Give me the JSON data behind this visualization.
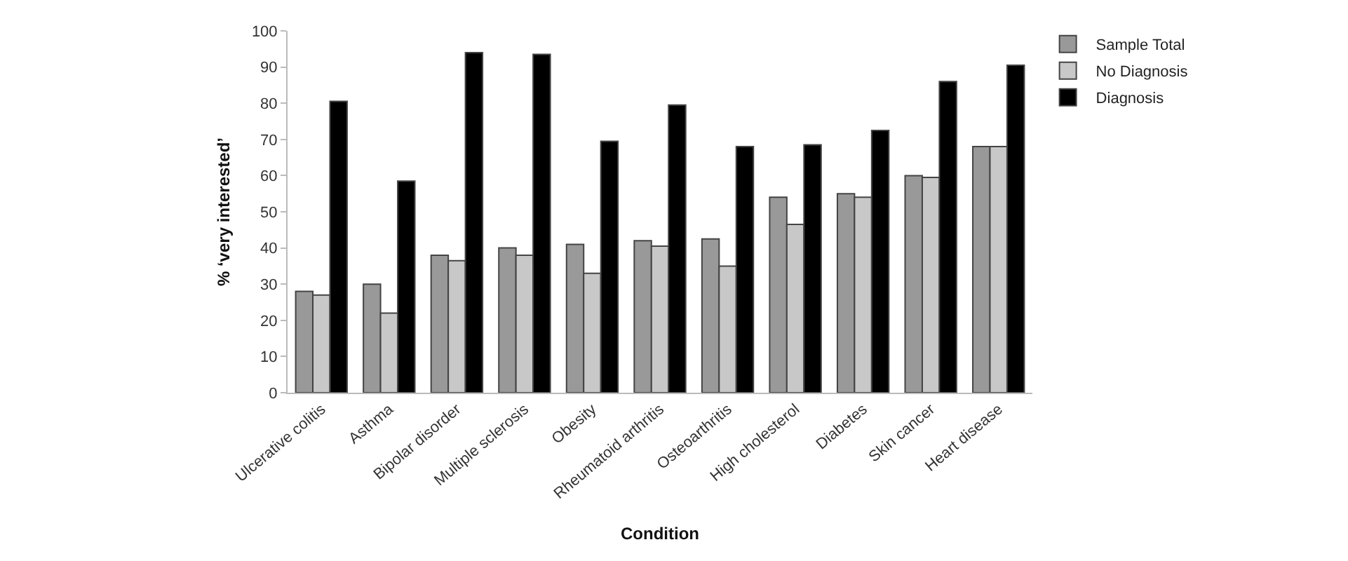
{
  "chart_data": {
    "type": "bar",
    "xlabel": "Condition",
    "ylabel": "% ‘very interested’",
    "categories": [
      "Ulcerative colitis",
      "Asthma",
      "Bipolar disorder",
      "Multiple sclerosis",
      "Obesity",
      "Rheumatoid arthritis",
      "Osteoarthritis",
      "High cholesterol",
      "Diabetes",
      "Skin cancer",
      "Heart disease"
    ],
    "series": [
      {
        "name": "Sample Total",
        "color": "#999999",
        "values": [
          28,
          30,
          38,
          40,
          41,
          42,
          42.5,
          54,
          55,
          60,
          68
        ]
      },
      {
        "name": "No Diagnosis",
        "color": "#c8c8c8",
        "values": [
          27,
          22,
          36.5,
          38,
          33,
          40.5,
          35,
          46.5,
          54,
          59.5,
          68
        ]
      },
      {
        "name": "Diagnosis",
        "color": "#000000",
        "values": [
          80.5,
          58.5,
          94,
          93.5,
          69.5,
          79.5,
          68,
          68.5,
          72.5,
          86,
          90.5
        ]
      }
    ],
    "ylim": [
      0,
      100
    ],
    "yticks": [
      0,
      10,
      20,
      30,
      40,
      50,
      60,
      70,
      80,
      90,
      100
    ],
    "grid": false,
    "legend": "top right"
  }
}
